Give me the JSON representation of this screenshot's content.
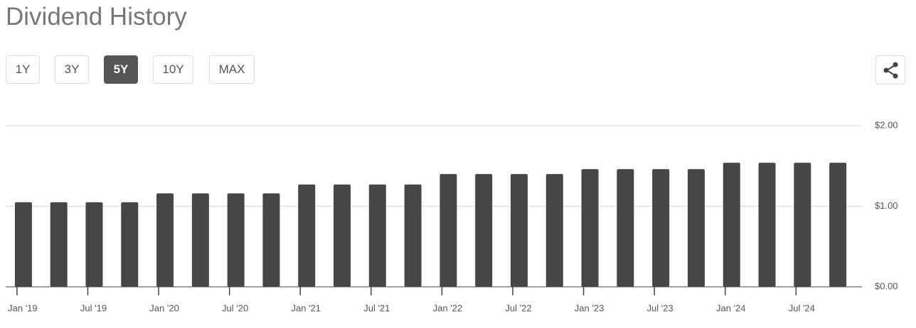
{
  "title": "Dividend History",
  "range_buttons": [
    "1Y",
    "3Y",
    "5Y",
    "10Y",
    "MAX"
  ],
  "selected_range": 2,
  "chart_data": {
    "type": "bar",
    "categories": [
      "Jan '19",
      null,
      "Jul '19",
      null,
      "Jan '20",
      null,
      "Jul '20",
      null,
      "Jan '21",
      null,
      "Jul '21",
      null,
      "Jan '22",
      null,
      "Jul '22",
      null,
      "Jan '23",
      null,
      "Jul '23",
      null,
      "Jan '24",
      null,
      "Jul '24",
      null
    ],
    "values": [
      1.05,
      1.05,
      1.05,
      1.05,
      1.16,
      1.16,
      1.16,
      1.16,
      1.27,
      1.27,
      1.27,
      1.27,
      1.4,
      1.4,
      1.4,
      1.4,
      1.46,
      1.46,
      1.46,
      1.46,
      1.54,
      1.54,
      1.54,
      1.54
    ],
    "color": "#464649",
    "ylim": [
      0,
      2
    ],
    "yticks": [
      {
        "value": 0,
        "label": "$0.00"
      },
      {
        "value": 1,
        "label": "$1.00"
      },
      {
        "value": 2,
        "label": "$2.00"
      }
    ],
    "grid": true
  }
}
